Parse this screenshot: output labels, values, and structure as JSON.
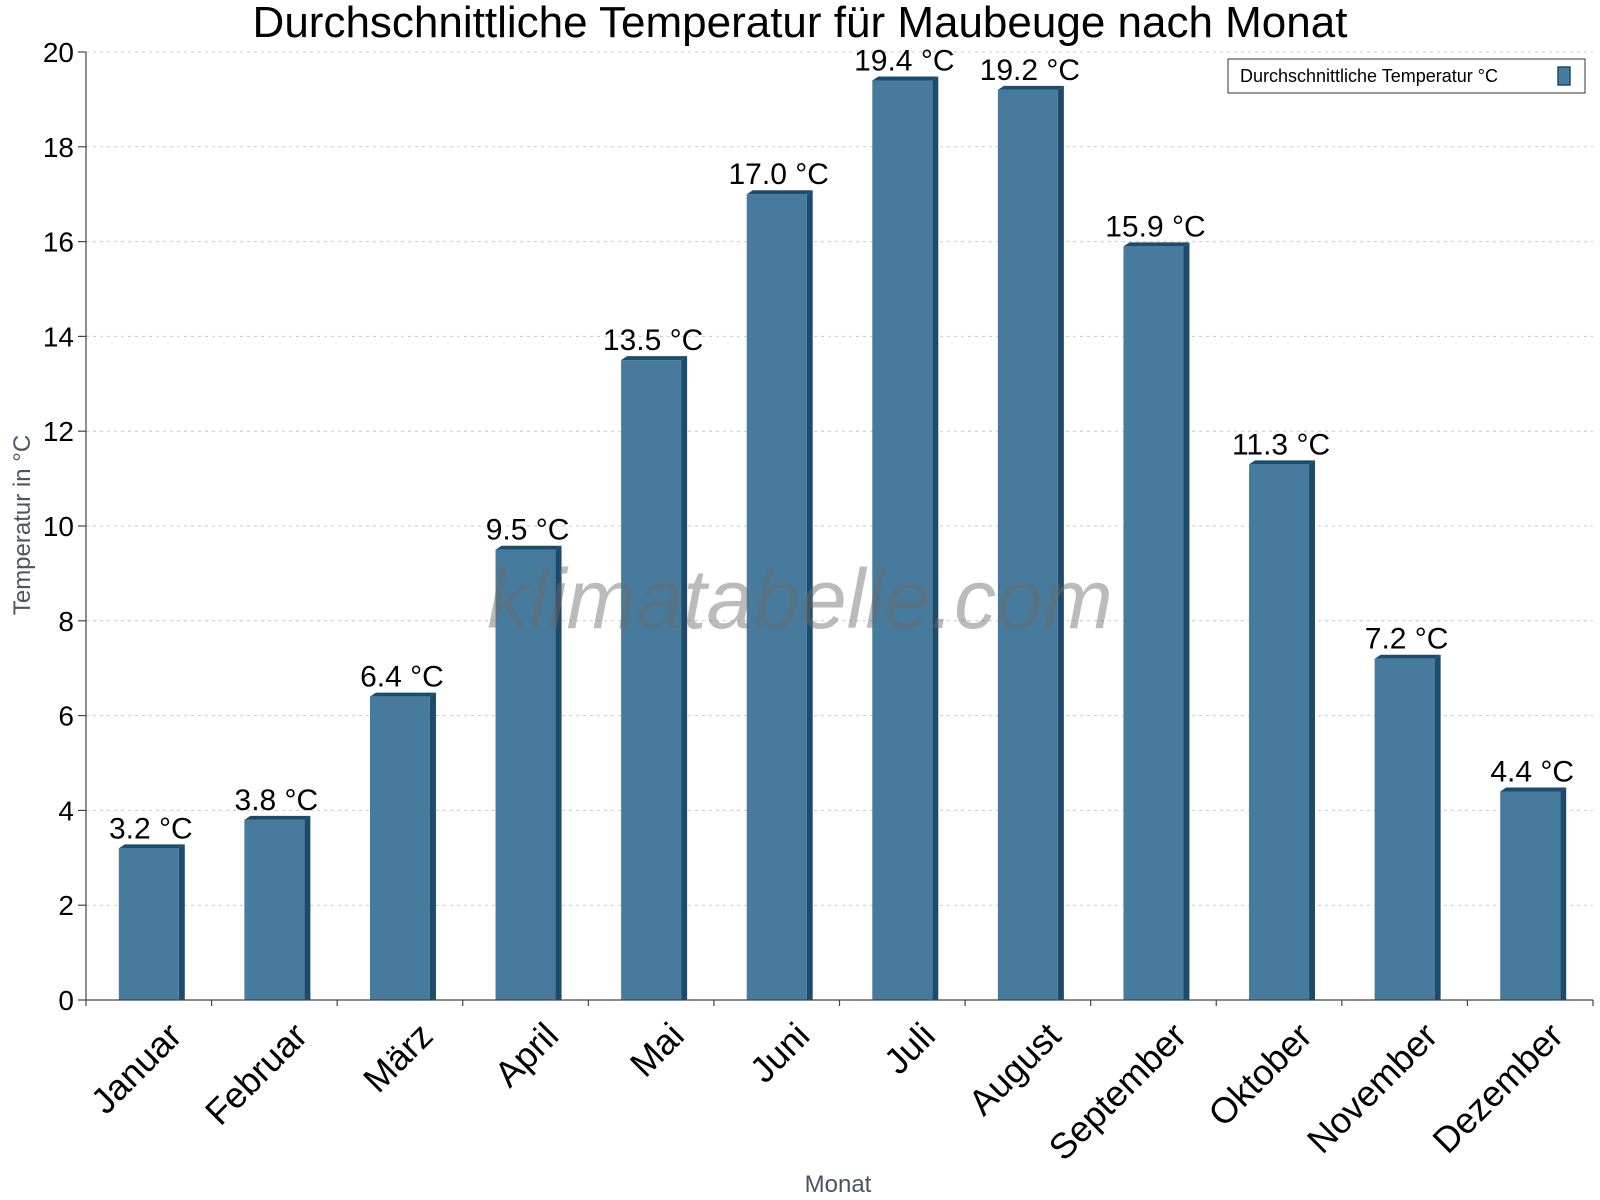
{
  "chart_data": {
    "type": "bar",
    "title": "Durchschnittliche Temperatur für Maubeuge nach Monat",
    "xlabel": "Monat",
    "ylabel": "Temperatur in °C",
    "ylim": [
      0,
      20
    ],
    "yticks": [
      0,
      2,
      4,
      6,
      8,
      10,
      12,
      14,
      16,
      18,
      20
    ],
    "grid": true,
    "legend_position": "top-right",
    "categories": [
      "Januar",
      "Februar",
      "März",
      "April",
      "Mai",
      "Juni",
      "Juli",
      "August",
      "September",
      "Oktober",
      "November",
      "Dezember"
    ],
    "series": [
      {
        "name": "Durchschnittliche Temperatur °C",
        "values": [
          3.2,
          3.8,
          6.4,
          9.5,
          13.5,
          17.0,
          19.4,
          19.2,
          15.9,
          11.3,
          7.2,
          4.4
        ],
        "labels": [
          "3.2 °C",
          "3.8 °C",
          "6.4 °C",
          "9.5 °C",
          "13.5 °C",
          "17.0 °C",
          "19.4 °C",
          "19.2 °C",
          "15.9 °C",
          "11.3 °C",
          "7.2 °C",
          "4.4 °C"
        ],
        "color": "#467b9e",
        "shade_color": "#1d4b6b"
      }
    ],
    "watermark": "klimatabelle.com"
  }
}
